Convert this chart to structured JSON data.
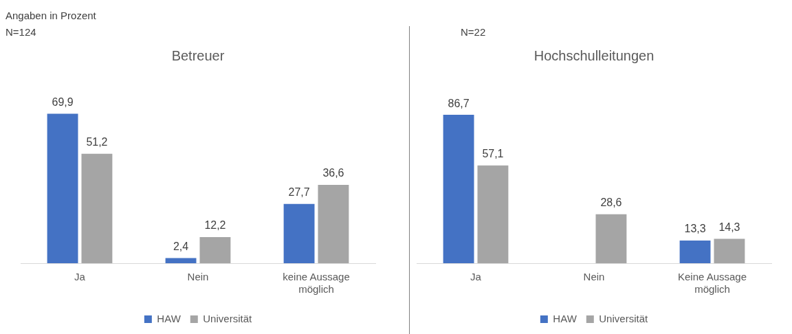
{
  "chart_data": [
    {
      "type": "bar",
      "title": "Betreuer",
      "annotations": [
        "Angaben in Prozent",
        "N=124"
      ],
      "categories": [
        "Ja",
        "Nein",
        "keine Aussage möglich"
      ],
      "legend": "bottom",
      "series": [
        {
          "name": "HAW",
          "color": "#4472c4",
          "values": [
            69.9,
            2.4,
            27.7
          ],
          "value_labels": [
            "69,9",
            "2,4",
            "27,7"
          ]
        },
        {
          "name": "Universität",
          "color": "#a5a5a5",
          "values": [
            51.2,
            12.2,
            36.6
          ],
          "value_labels": [
            "51,2",
            "12,2",
            "36,6"
          ]
        }
      ]
    },
    {
      "type": "bar",
      "title": "Hochschulleitungen",
      "annotations": [
        "N=22"
      ],
      "categories": [
        "Ja",
        "Nein",
        "Keine Aussage möglich"
      ],
      "legend": "bottom",
      "series": [
        {
          "name": "HAW",
          "color": "#4472c4",
          "values": [
            86.7,
            null,
            13.3
          ],
          "value_labels": [
            "86,7",
            null,
            "13,3"
          ]
        },
        {
          "name": "Universität",
          "color": "#a5a5a5",
          "values": [
            57.1,
            28.6,
            14.3
          ],
          "value_labels": [
            "57,1",
            "28,6",
            "14,3"
          ]
        }
      ]
    }
  ]
}
